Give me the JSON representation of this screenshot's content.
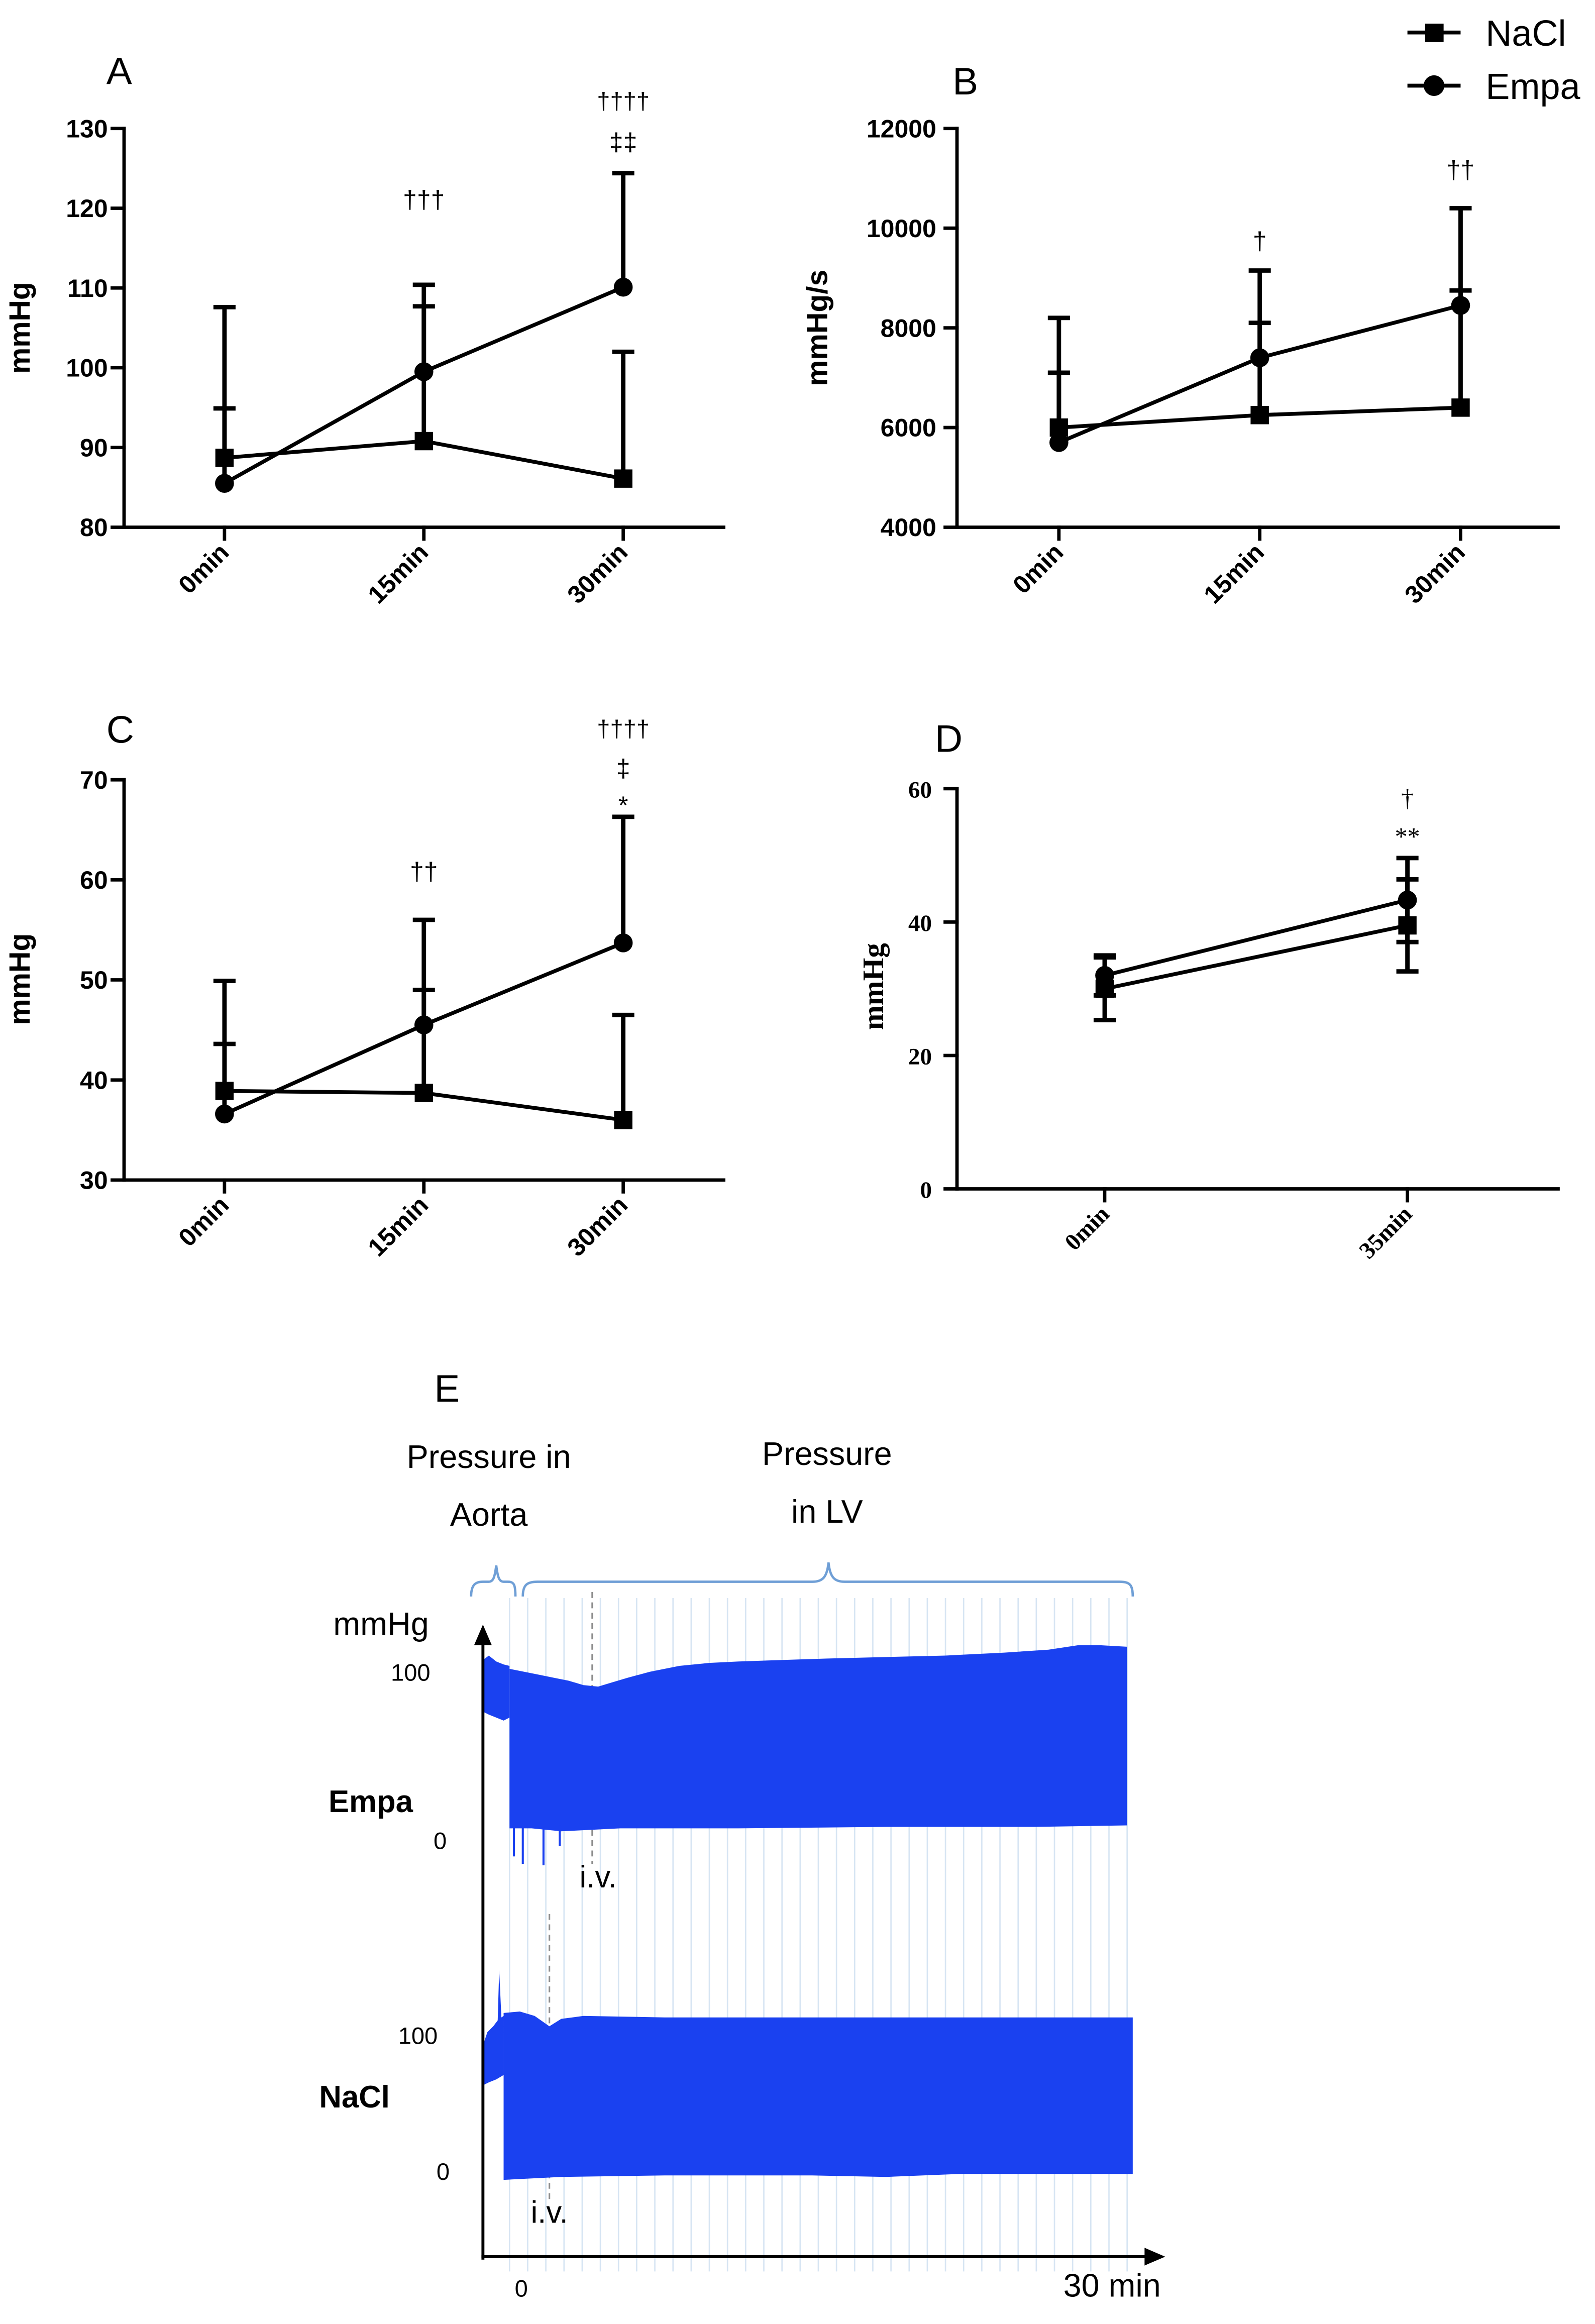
{
  "colors": {
    "series": "#000000",
    "trace": "#1a41f0",
    "brace": "#6f9fd6",
    "grid": "#d7e5f3"
  },
  "legend": {
    "placement": "top-right",
    "entries": [
      {
        "name": "NaCl",
        "marker": "square"
      },
      {
        "name": "Empa",
        "marker": "circle"
      }
    ]
  },
  "chart_data": [
    {
      "label": "A",
      "type": "line",
      "title": "",
      "xlabel": "",
      "ylabel": "mmHg",
      "categories": [
        "0min",
        "15min",
        "30min"
      ],
      "ylim": [
        80,
        130
      ],
      "yticks": [
        80,
        90,
        100,
        110,
        120,
        130
      ],
      "grid": false,
      "series": [
        {
          "name": "NaCl",
          "marker": "square",
          "values": [
            88.7,
            90.8,
            86.1
          ],
          "error_high": [
            94.9,
            107.7,
            102.0
          ]
        },
        {
          "name": "Empa",
          "marker": "circle",
          "values": [
            85.5,
            99.5,
            110.1
          ],
          "error_high": [
            107.6,
            110.4,
            124.4
          ]
        }
      ],
      "annotations": [
        {
          "at": 1,
          "lines": [
            "†††"
          ]
        },
        {
          "at": 2,
          "lines": [
            "††††",
            "‡‡"
          ]
        }
      ]
    },
    {
      "label": "B",
      "type": "line",
      "title": "",
      "xlabel": "",
      "ylabel": "mmHg/s",
      "categories": [
        "0min",
        "15min",
        "30min"
      ],
      "ylim": [
        4000,
        12000
      ],
      "yticks": [
        4000,
        6000,
        8000,
        10000,
        12000
      ],
      "grid": false,
      "series": [
        {
          "name": "NaCl",
          "marker": "square",
          "values": [
            6000,
            6250,
            6400
          ],
          "error_high": [
            7100,
            8100,
            8750
          ]
        },
        {
          "name": "Empa",
          "marker": "circle",
          "values": [
            5700,
            7400,
            8450
          ],
          "error_high": [
            8200,
            9150,
            10400
          ]
        }
      ],
      "annotations": [
        {
          "at": 1,
          "lines": [
            "†"
          ]
        },
        {
          "at": 2,
          "lines": [
            "††"
          ]
        }
      ]
    },
    {
      "label": "C",
      "type": "line",
      "title": "",
      "xlabel": "",
      "ylabel": "mmHg",
      "categories": [
        "0min",
        "15min",
        "30min"
      ],
      "ylim": [
        30,
        70
      ],
      "yticks": [
        30,
        40,
        50,
        60,
        70
      ],
      "grid": false,
      "series": [
        {
          "name": "NaCl",
          "marker": "square",
          "values": [
            38.9,
            38.7,
            36.0
          ],
          "error_high": [
            43.6,
            49.0,
            46.5
          ]
        },
        {
          "name": "Empa",
          "marker": "circle",
          "values": [
            36.6,
            45.5,
            53.7
          ],
          "error_high": [
            49.9,
            56.0,
            66.3
          ]
        }
      ],
      "annotations": [
        {
          "at": 1,
          "lines": [
            "††"
          ]
        },
        {
          "at": 2,
          "lines": [
            "††††",
            "‡",
            "*"
          ]
        }
      ]
    },
    {
      "label": "D",
      "type": "line",
      "title": "",
      "xlabel": "",
      "ylabel": "mmHg",
      "categories": [
        "0min",
        "35min"
      ],
      "ylim": [
        0,
        60
      ],
      "yticks": [
        0,
        20,
        40,
        60
      ],
      "grid": false,
      "series": [
        {
          "name": "NaCl",
          "marker": "square",
          "values": [
            30.0,
            39.5
          ],
          "error_high": [
            34.7,
            46.4
          ],
          "error_low": [
            25.3,
            32.6
          ]
        },
        {
          "name": "Empa",
          "marker": "circle",
          "values": [
            32.0,
            43.3
          ],
          "error_high": [
            35.0,
            49.6
          ],
          "error_low": [
            29.0,
            37.0
          ]
        }
      ],
      "annotations": [
        {
          "at": 1,
          "lines": [
            "†",
            "**"
          ]
        }
      ]
    }
  ],
  "recording": {
    "label": "E",
    "regions": [
      {
        "line1": "Pressure in",
        "line2": "Aorta"
      },
      {
        "line1": "Pressure",
        "line2": "in LV"
      }
    ],
    "ylabel": "mmHg",
    "traces": [
      {
        "name": "Empa",
        "ytick_high": 100,
        "ytick_low": 0,
        "injection_label": "i.v."
      },
      {
        "name": "NaCl",
        "ytick_high": 100,
        "ytick_low": 0,
        "injection_label": "i.v."
      }
    ],
    "x_start": "0",
    "x_end": "30 min"
  }
}
